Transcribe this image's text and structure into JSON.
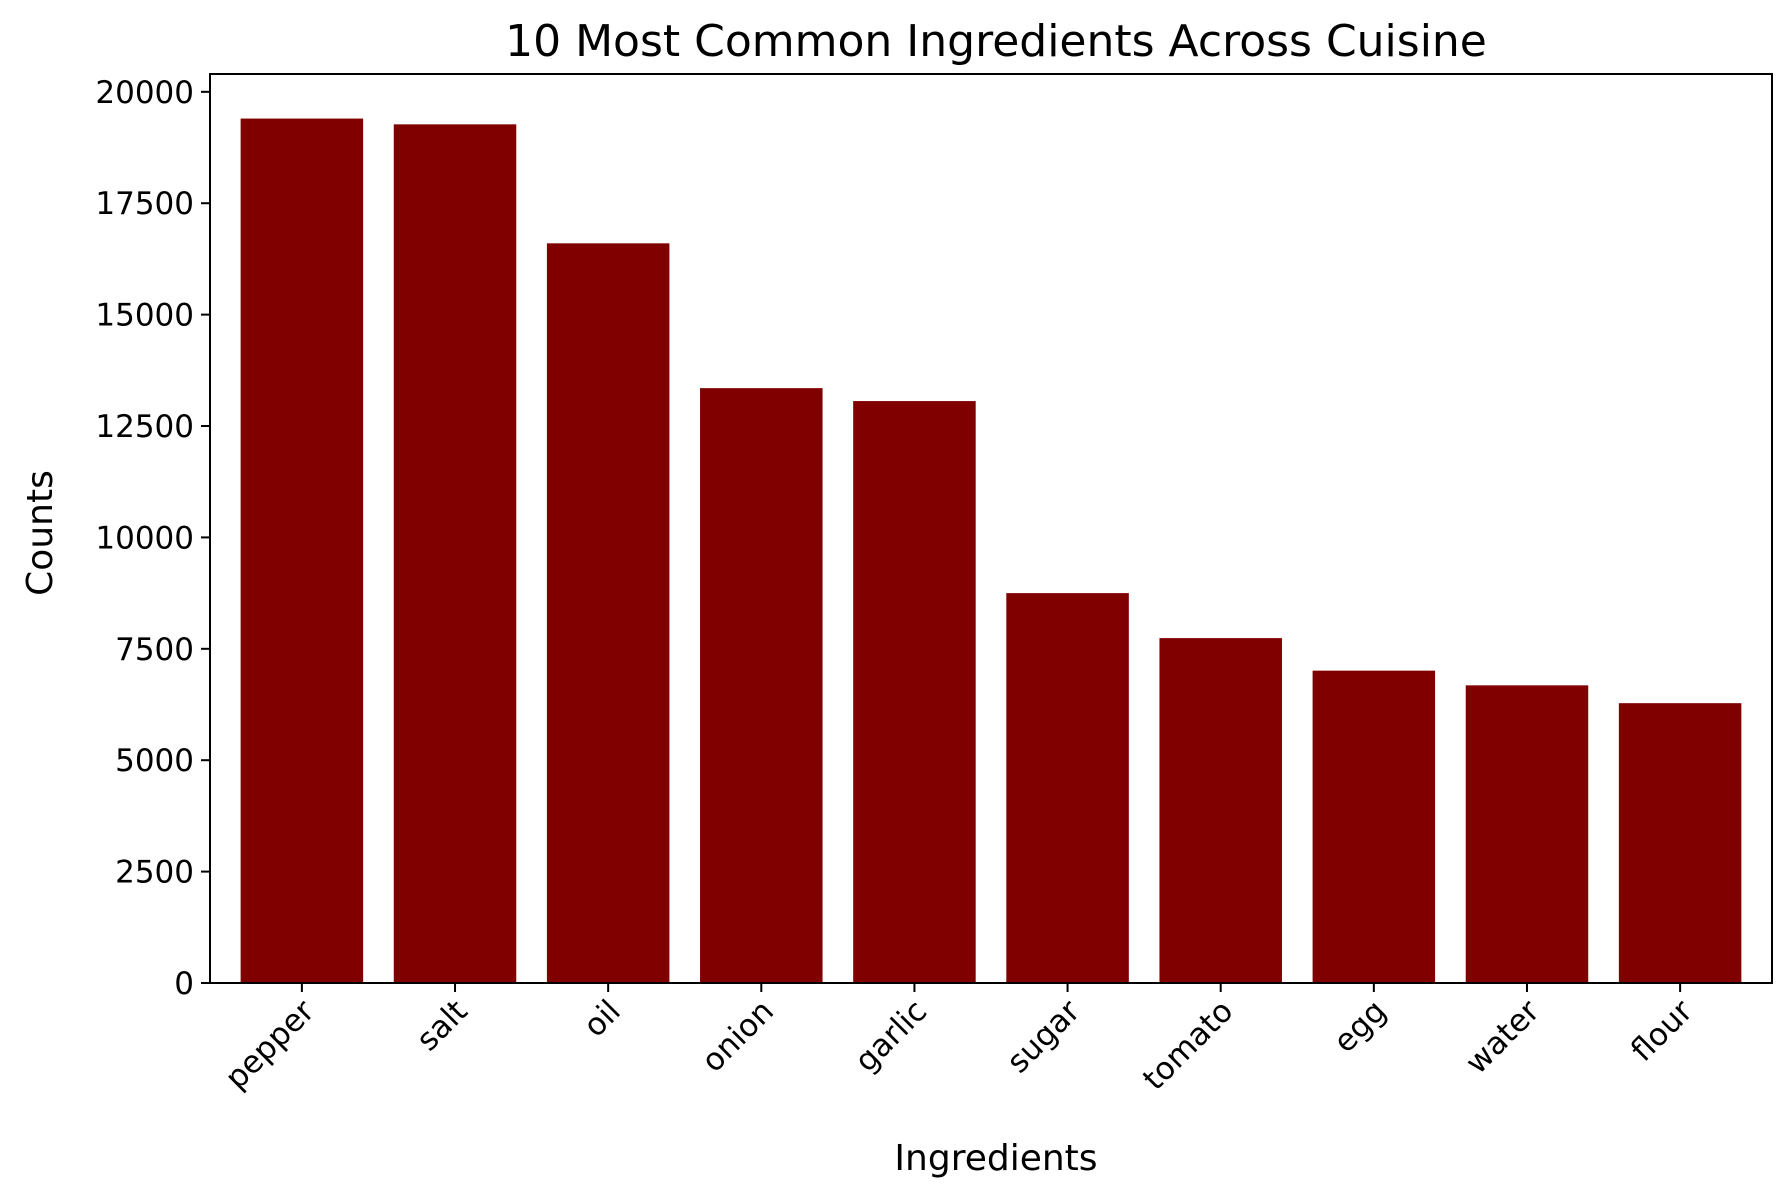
{
  "chart_data": {
    "type": "bar",
    "title": "10 Most Common Ingredients Across Cuisine",
    "xlabel": "Ingredients",
    "ylabel": "Counts",
    "categories": [
      "pepper",
      "salt",
      "oil",
      "onion",
      "garlic",
      "sugar",
      "tomato",
      "egg",
      "water",
      "flour"
    ],
    "values": [
      19400,
      19270,
      16600,
      13350,
      13060,
      8750,
      7740,
      7010,
      6680,
      6280
    ],
    "ylim": [
      0,
      20400
    ],
    "yticks": [
      0,
      2500,
      5000,
      7500,
      10000,
      12500,
      15000,
      17500,
      20000
    ],
    "bar_color": "#800000",
    "grid": false,
    "xtick_rotation": "45 degrees"
  }
}
